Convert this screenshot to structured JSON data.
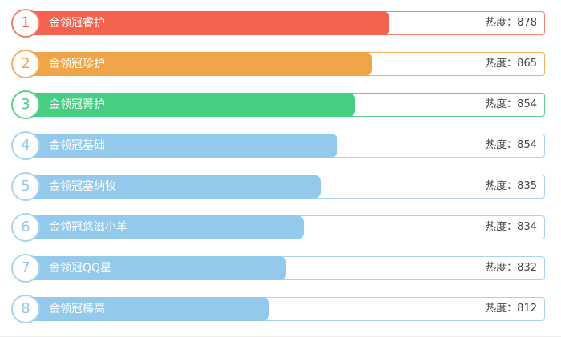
{
  "chart_data": {
    "type": "bar",
    "orientation": "horizontal",
    "value_prefix": "热度：",
    "categories": [
      "金领冠睿护",
      "金领冠珍护",
      "金领冠菁护",
      "金领冠基础",
      "金领冠塞纳牧",
      "金领冠悠滋小羊",
      "金领冠QQ星",
      "金领冠榛高"
    ],
    "values": [
      878,
      865,
      854,
      854,
      835,
      834,
      832,
      812
    ],
    "ranks": [
      "1",
      "2",
      "3",
      "4",
      "5",
      "6",
      "7",
      "8"
    ],
    "fill_fraction": [
      0.7,
      0.667,
      0.634,
      0.601,
      0.568,
      0.535,
      0.502,
      0.469
    ],
    "colors": [
      "#f4624f",
      "#f0a548",
      "#46ce82",
      "#93caec",
      "#93caec",
      "#93caec",
      "#93caec",
      "#93caec"
    ],
    "border_colors": [
      "#f08070",
      "#f0b060",
      "#60d090",
      "#a8d4ee",
      "#a8d4ee",
      "#a8d4ee",
      "#a8d4ee",
      "#a8d4ee"
    ]
  }
}
